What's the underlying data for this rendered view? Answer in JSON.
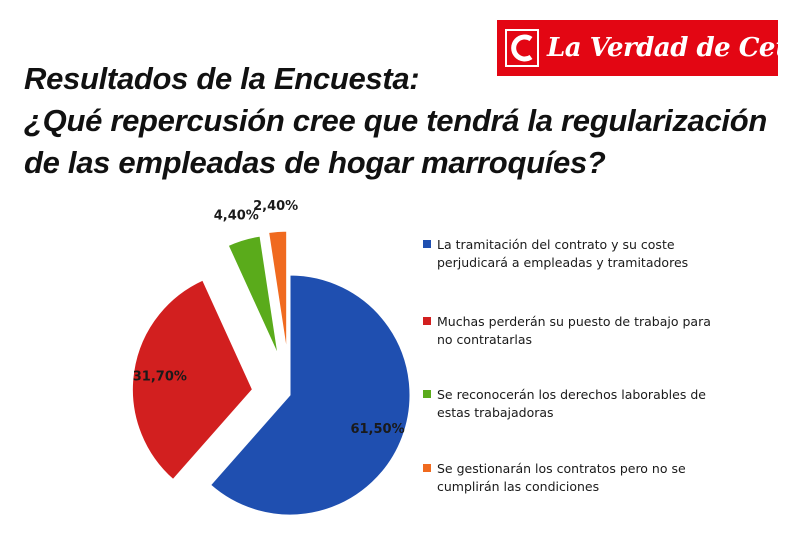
{
  "logo": {
    "text": "La Verdad de Ceuta"
  },
  "title_lines": [
    "Resultados de la Encuesta:",
    "¿Qué repercusión cree que tendrá la regularización",
    "de las empleadas de hogar marroquíes?"
  ],
  "colors": {
    "logo_bg": "#e30613",
    "series": [
      "#1f4fb0",
      "#d21f1f",
      "#5aab1b",
      "#f06a1f"
    ]
  },
  "chart_data": {
    "type": "pie",
    "title": "",
    "exploded": true,
    "legend_position": "right",
    "slices": [
      {
        "label": "La tramitación del contrato y su coste perjudicará a empleadas y tramitadores",
        "value": 61.5,
        "display": "61,50%",
        "color": "#1f4fb0"
      },
      {
        "label": "Muchas perderán su puesto de trabajo para no contratarlas",
        "value": 31.7,
        "display": "31,70%",
        "color": "#d21f1f"
      },
      {
        "label": "Se reconocerán los derechos laborables de estas trabajadoras",
        "value": 4.4,
        "display": "4,40%",
        "color": "#5aab1b"
      },
      {
        "label": "Se gestionarán los contratos pero no se cumplirán las condiciones",
        "value": 2.4,
        "display": "2,40%",
        "color": "#f06a1f"
      }
    ]
  }
}
